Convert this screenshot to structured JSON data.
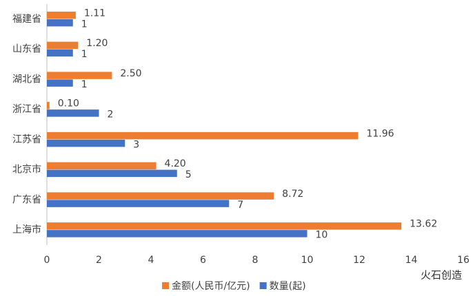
{
  "chart_data": {
    "type": "barh",
    "categories": [
      "福建省",
      "山东省",
      "湖北省",
      "浙江省",
      "江苏省",
      "北京市",
      "广东省",
      "上海市"
    ],
    "series": [
      {
        "name": "金额(人民币/亿元)",
        "color": "#ed7d31",
        "values": [
          1.11,
          1.2,
          2.5,
          0.1,
          11.96,
          4.2,
          8.72,
          13.62
        ],
        "value_labels": [
          "1.11",
          "1.20",
          "2.50",
          "0.10",
          "11.96",
          "4.20",
          "8.72",
          "13.62"
        ]
      },
      {
        "name": "数量(起)",
        "color": "#4472c4",
        "values": [
          1,
          1,
          1,
          2,
          3,
          5,
          7,
          10
        ]
      }
    ],
    "xlim": [
      0,
      16
    ],
    "xticks": [
      0,
      2,
      4,
      6,
      8,
      10,
      12,
      14,
      16
    ],
    "grid": false,
    "legend": "bottom",
    "watermark": "火石创造"
  }
}
